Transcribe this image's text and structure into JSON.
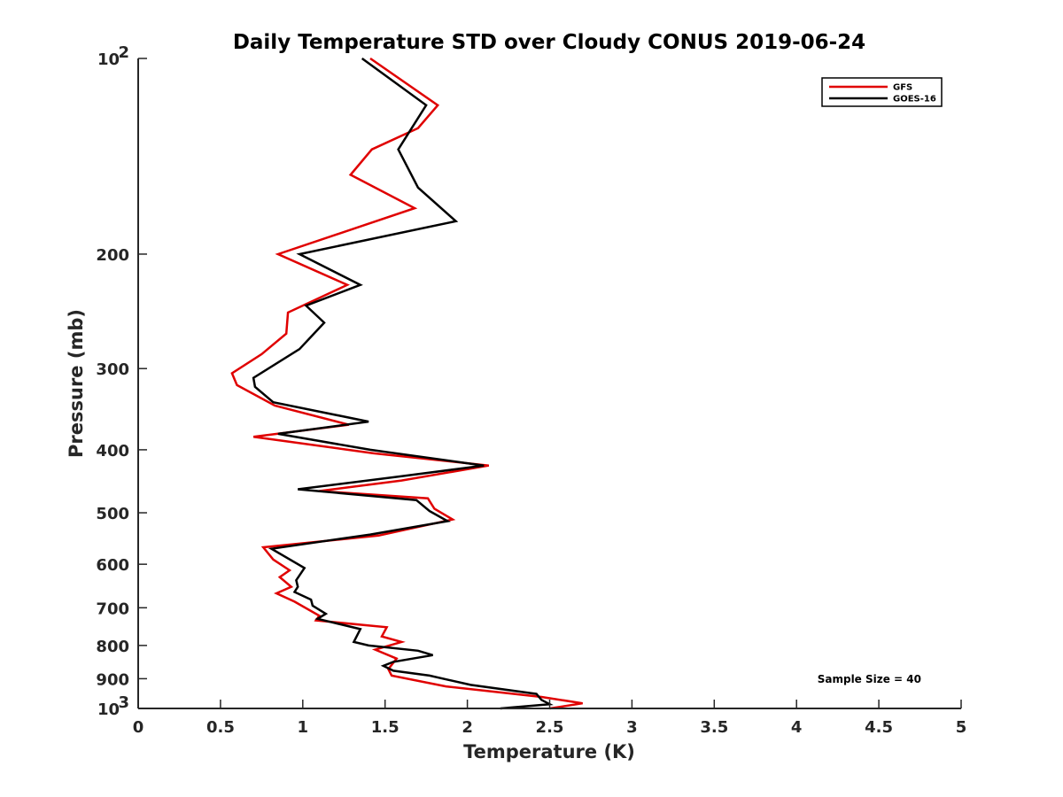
{
  "chart_data": {
    "type": "line",
    "title": "Daily Temperature STD over Cloudy CONUS 2019-06-24",
    "xlabel": "Temperature (K)",
    "ylabel": "Pressure (mb)",
    "xlim": [
      0,
      5
    ],
    "ylim": [
      100,
      1000
    ],
    "y_scale": "log",
    "y_reversed": true,
    "grid": false,
    "legend_position": "top-right",
    "x_ticks": [
      {
        "value": 0,
        "label": "0"
      },
      {
        "value": 0.5,
        "label": "0.5"
      },
      {
        "value": 1,
        "label": "1"
      },
      {
        "value": 1.5,
        "label": "1.5"
      },
      {
        "value": 2,
        "label": "2"
      },
      {
        "value": 2.5,
        "label": "2.5"
      },
      {
        "value": 3,
        "label": "3"
      },
      {
        "value": 3.5,
        "label": "3.5"
      },
      {
        "value": 4,
        "label": "4"
      },
      {
        "value": 4.5,
        "label": "4.5"
      },
      {
        "value": 5,
        "label": "5"
      }
    ],
    "y_ticks": [
      {
        "value": 100,
        "label": "10",
        "sup": "2"
      },
      {
        "value": 200,
        "label": "200",
        "sup": ""
      },
      {
        "value": 300,
        "label": "300",
        "sup": ""
      },
      {
        "value": 400,
        "label": "400",
        "sup": ""
      },
      {
        "value": 500,
        "label": "500",
        "sup": ""
      },
      {
        "value": 600,
        "label": "600",
        "sup": ""
      },
      {
        "value": 700,
        "label": "700",
        "sup": ""
      },
      {
        "value": 800,
        "label": "800",
        "sup": ""
      },
      {
        "value": 900,
        "label": "900",
        "sup": ""
      },
      {
        "value": 1000,
        "label": "10",
        "sup": "3"
      }
    ],
    "annotation": "Sample Size = 40",
    "series": [
      {
        "name": "GFS",
        "color": "#e00000",
        "points": [
          [
            1.41,
            100
          ],
          [
            1.82,
            118
          ],
          [
            1.7,
            128
          ],
          [
            1.42,
            138
          ],
          [
            1.29,
            151
          ],
          [
            1.68,
            170
          ],
          [
            0.85,
            200
          ],
          [
            1.27,
            223
          ],
          [
            0.91,
            246
          ],
          [
            0.9,
            265
          ],
          [
            0.75,
            285
          ],
          [
            0.57,
            305
          ],
          [
            0.6,
            318
          ],
          [
            0.83,
            342
          ],
          [
            1.28,
            366
          ],
          [
            0.7,
            382
          ],
          [
            1.43,
            405
          ],
          [
            2.13,
            423
          ],
          [
            1.6,
            446
          ],
          [
            1.1,
            463
          ],
          [
            1.76,
            475
          ],
          [
            1.8,
            493
          ],
          [
            1.91,
            512
          ],
          [
            1.46,
            542
          ],
          [
            0.76,
            565
          ],
          [
            0.82,
            590
          ],
          [
            0.92,
            613
          ],
          [
            0.86,
            628
          ],
          [
            0.93,
            650
          ],
          [
            0.84,
            665
          ],
          [
            0.95,
            685
          ],
          [
            1.1,
            720
          ],
          [
            1.08,
            732
          ],
          [
            1.51,
            750
          ],
          [
            1.48,
            775
          ],
          [
            1.6,
            790
          ],
          [
            1.44,
            812
          ],
          [
            1.57,
            838
          ],
          [
            1.52,
            870
          ],
          [
            1.54,
            890
          ],
          [
            1.87,
            925
          ],
          [
            2.45,
            960
          ],
          [
            2.7,
            982
          ],
          [
            2.5,
            1000
          ]
        ]
      },
      {
        "name": "GOES-16",
        "color": "#000000",
        "points": [
          [
            1.36,
            100
          ],
          [
            1.75,
            118
          ],
          [
            1.58,
            138
          ],
          [
            1.7,
            158
          ],
          [
            1.93,
            178
          ],
          [
            0.98,
            200
          ],
          [
            1.35,
            223
          ],
          [
            1.02,
            240
          ],
          [
            1.13,
            255
          ],
          [
            0.98,
            280
          ],
          [
            0.7,
            310
          ],
          [
            0.71,
            320
          ],
          [
            0.82,
            338
          ],
          [
            1.4,
            362
          ],
          [
            0.85,
            378
          ],
          [
            1.41,
            400
          ],
          [
            2.1,
            423
          ],
          [
            1.58,
            440
          ],
          [
            0.97,
            460
          ],
          [
            1.69,
            478
          ],
          [
            1.77,
            497
          ],
          [
            1.88,
            515
          ],
          [
            1.41,
            540
          ],
          [
            0.81,
            568
          ],
          [
            1.01,
            608
          ],
          [
            0.96,
            635
          ],
          [
            0.97,
            650
          ],
          [
            0.95,
            662
          ],
          [
            1.05,
            680
          ],
          [
            1.06,
            695
          ],
          [
            1.14,
            715
          ],
          [
            1.09,
            728
          ],
          [
            1.35,
            755
          ],
          [
            1.31,
            790
          ],
          [
            1.4,
            800
          ],
          [
            1.7,
            815
          ],
          [
            1.79,
            828
          ],
          [
            1.55,
            848
          ],
          [
            1.49,
            860
          ],
          [
            1.55,
            875
          ],
          [
            1.77,
            890
          ],
          [
            2.02,
            920
          ],
          [
            2.42,
            950
          ],
          [
            2.45,
            970
          ],
          [
            2.5,
            985
          ],
          [
            2.2,
            1000
          ]
        ]
      }
    ]
  }
}
